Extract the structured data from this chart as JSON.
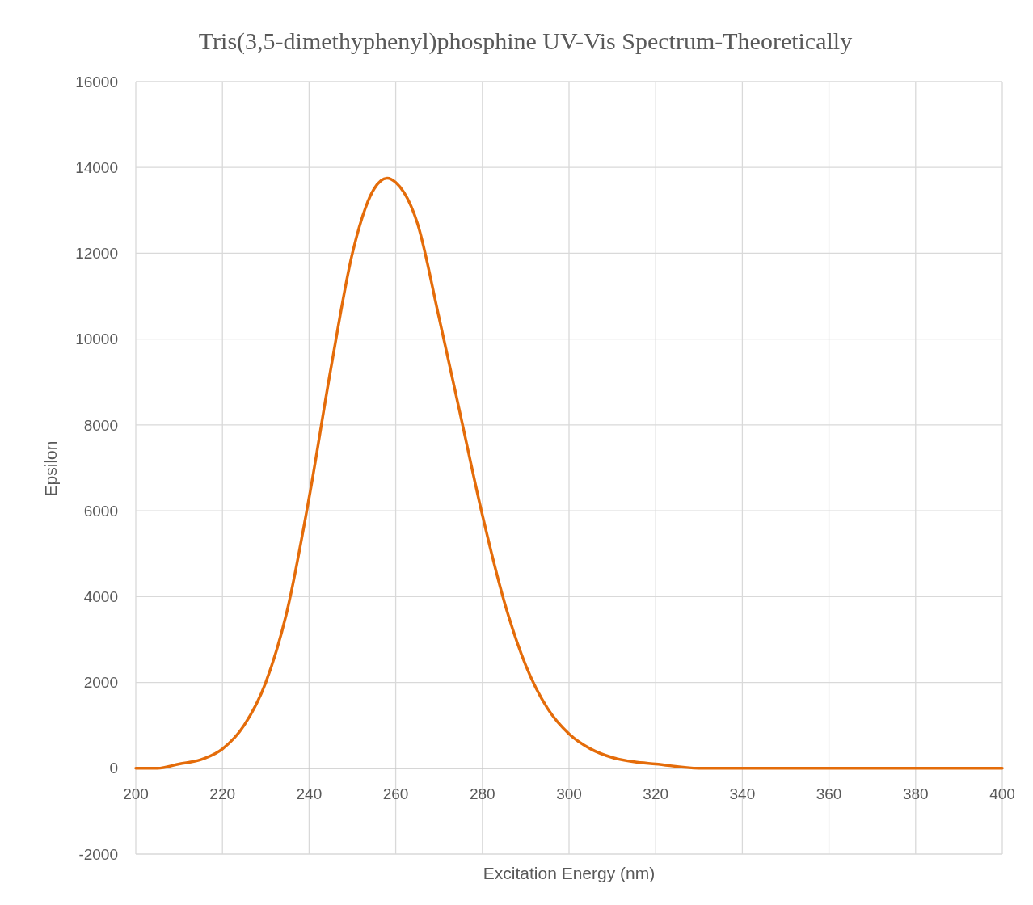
{
  "chart_data": {
    "type": "line",
    "title": "Tris(3,5-dimethyphenyl)phosphine UV-Vis Spectrum-Theoretically",
    "xlabel": "Excitation Energy (nm)",
    "ylabel": "Epsilon",
    "x": [
      200,
      205,
      210,
      215,
      220,
      225,
      230,
      235,
      240,
      245,
      250,
      255,
      258,
      260,
      265,
      270,
      275,
      280,
      285,
      290,
      295,
      300,
      305,
      310,
      315,
      320,
      330,
      340,
      360,
      400
    ],
    "series": [
      {
        "color": "#e46c0a",
        "values": [
          0,
          0,
          100,
          200,
          450,
          1000,
          2000,
          3700,
          6300,
          9300,
          12000,
          13500,
          13750,
          13650,
          12700,
          10500,
          8200,
          5900,
          3900,
          2400,
          1400,
          800,
          450,
          250,
          150,
          100,
          0,
          0,
          0,
          0
        ]
      }
    ],
    "xlim": [
      200,
      400
    ],
    "xticks": [
      200,
      220,
      240,
      260,
      280,
      300,
      320,
      340,
      360,
      380,
      400
    ],
    "ylim": [
      -2000,
      16000
    ],
    "yticks": [
      -2000,
      0,
      2000,
      4000,
      6000,
      8000,
      10000,
      12000,
      14000,
      16000
    ],
    "grid": true,
    "marker": "none",
    "line_style": "solid"
  }
}
